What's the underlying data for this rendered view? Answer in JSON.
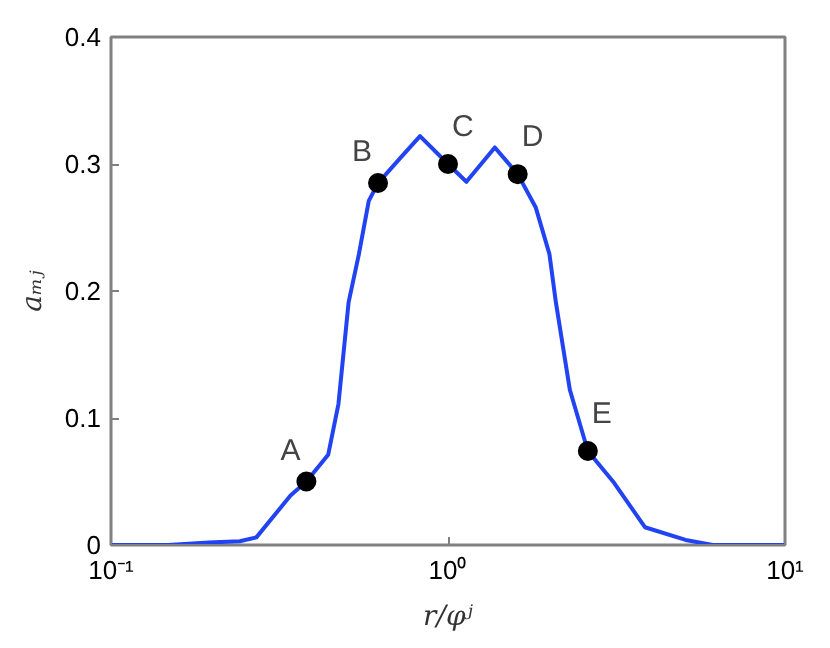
{
  "chart_data": {
    "type": "line",
    "xlabel": "r/φʲ",
    "ylabel": "aₘⱼ",
    "log": "x",
    "grid": false,
    "xlim": [
      0.1,
      10
    ],
    "xticks": [
      {
        "value": 0.1,
        "label": "10⁻¹"
      },
      {
        "value": 1,
        "label": "10⁰"
      },
      {
        "value": 10,
        "label": "10¹"
      }
    ],
    "ylim": [
      0,
      0.4
    ],
    "yticks": [
      0,
      0.1,
      0.2,
      0.3,
      0.4
    ],
    "series": [
      {
        "color": "#2143f2",
        "line_style": "solid",
        "marker": "none",
        "x": [
          0.1,
          0.148,
          0.195,
          0.241,
          0.27,
          0.341,
          0.38,
          0.441,
          0.473,
          0.507,
          0.544,
          0.582,
          0.62,
          0.718,
          0.826,
          1.0,
          1.134,
          1.377,
          1.61,
          1.82,
          2.0,
          2.09,
          2.3,
          2.6,
          3.11,
          3.84,
          5.07,
          6.1,
          10
        ],
        "values": [
          0,
          0,
          0.002,
          0.003,
          0.006,
          0.039,
          0.05,
          0.071,
          0.111,
          0.191,
          0.229,
          0.271,
          0.285,
          0.304,
          0.322,
          0.3,
          0.286,
          0.313,
          0.292,
          0.266,
          0.229,
          0.191,
          0.122,
          0.074,
          0.049,
          0.014,
          0.004,
          0,
          0
        ]
      },
      {
        "type": "scatter",
        "color": "#000000",
        "marker": "circle",
        "x": [
          0.38,
          0.62,
          1.0,
          1.61,
          2.6
        ],
        "values": [
          0.05,
          0.285,
          0.3,
          0.292,
          0.074
        ]
      }
    ],
    "annotations": [
      {
        "text": "A",
        "x": 0.38,
        "y": 0.05
      },
      {
        "text": "B",
        "x": 0.62,
        "y": 0.285
      },
      {
        "text": "C",
        "x": 1.0,
        "y": 0.3
      },
      {
        "text": "D",
        "x": 1.61,
        "y": 0.292
      },
      {
        "text": "E",
        "x": 2.6,
        "y": 0.074
      }
    ]
  }
}
